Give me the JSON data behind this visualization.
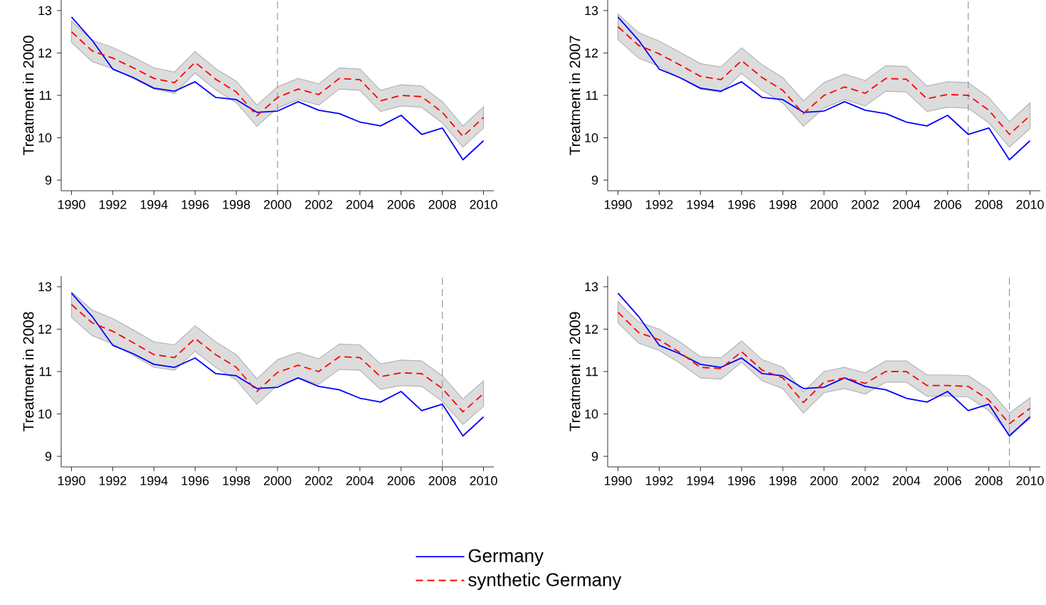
{
  "chart_data": [
    {
      "type": "line",
      "ylabel": "Treatment in 2000",
      "x": [
        1990,
        1991,
        1992,
        1993,
        1994,
        1995,
        1996,
        1997,
        1998,
        1999,
        2000,
        2001,
        2002,
        2003,
        2004,
        2005,
        2006,
        2007,
        2008,
        2009,
        2010
      ],
      "xlim": [
        1989.5,
        2010.5
      ],
      "ylim": [
        8.75,
        13.25
      ],
      "xticks": [
        1990,
        1992,
        1994,
        1996,
        1998,
        2000,
        2002,
        2004,
        2006,
        2008,
        2010
      ],
      "yticks": [
        9,
        10,
        11,
        12,
        13
      ],
      "ref_lines": [
        {
          "axis": "x",
          "value": 2000,
          "color": "#999999",
          "line_style": "dashed"
        }
      ],
      "series": [
        {
          "color": "#0000ff",
          "line_style": "solid",
          "values": [
            12.85,
            12.3,
            11.62,
            11.42,
            11.17,
            11.1,
            11.32,
            10.95,
            10.9,
            10.6,
            10.63,
            10.85,
            10.65,
            10.57,
            10.37,
            10.28,
            10.53,
            10.08,
            10.23,
            9.48,
            9.93
          ]
        },
        {
          "color": "#ff0000",
          "line_style": "dashed",
          "values": [
            12.5,
            12.05,
            11.88,
            11.65,
            11.4,
            11.3,
            11.78,
            11.38,
            11.08,
            10.52,
            10.95,
            11.15,
            11.02,
            11.4,
            11.37,
            10.87,
            11.0,
            10.97,
            10.6,
            10.03,
            10.48
          ],
          "lower": [
            12.25,
            11.8,
            11.63,
            11.4,
            11.15,
            11.05,
            11.53,
            11.13,
            10.83,
            10.27,
            10.7,
            10.9,
            10.77,
            11.15,
            11.12,
            10.62,
            10.75,
            10.72,
            10.35,
            9.78,
            10.23
          ],
          "upper": [
            12.75,
            12.3,
            12.13,
            11.9,
            11.65,
            11.55,
            12.03,
            11.63,
            11.33,
            10.77,
            11.2,
            11.4,
            11.27,
            11.65,
            11.62,
            11.12,
            11.25,
            11.22,
            10.85,
            10.28,
            10.73
          ]
        }
      ]
    },
    {
      "type": "line",
      "ylabel": "Treatment in 2007",
      "x": [
        1990,
        1991,
        1992,
        1993,
        1994,
        1995,
        1996,
        1997,
        1998,
        1999,
        2000,
        2001,
        2002,
        2003,
        2004,
        2005,
        2006,
        2007,
        2008,
        2009,
        2010
      ],
      "xlim": [
        1989.5,
        2010.5
      ],
      "ylim": [
        8.75,
        13.25
      ],
      "xticks": [
        1990,
        1992,
        1994,
        1996,
        1998,
        2000,
        2002,
        2004,
        2006,
        2008,
        2010
      ],
      "yticks": [
        9,
        10,
        11,
        12,
        13
      ],
      "ref_lines": [
        {
          "axis": "x",
          "value": 2007,
          "color": "#999999",
          "line_style": "dashed"
        }
      ],
      "series": [
        {
          "color": "#0000ff",
          "line_style": "solid",
          "values": [
            12.85,
            12.3,
            11.62,
            11.42,
            11.17,
            11.1,
            11.32,
            10.95,
            10.9,
            10.6,
            10.63,
            10.85,
            10.65,
            10.57,
            10.37,
            10.28,
            10.53,
            10.08,
            10.23,
            9.48,
            9.93
          ]
        },
        {
          "color": "#ff0000",
          "line_style": "dashed",
          "values": [
            12.62,
            12.18,
            11.98,
            11.72,
            11.45,
            11.37,
            11.82,
            11.42,
            11.12,
            10.57,
            11.0,
            11.2,
            11.05,
            11.4,
            11.38,
            10.92,
            11.02,
            11.0,
            10.65,
            10.08,
            10.52
          ],
          "lower": [
            12.32,
            11.88,
            11.68,
            11.42,
            11.15,
            11.07,
            11.52,
            11.12,
            10.82,
            10.27,
            10.7,
            10.9,
            10.75,
            11.1,
            11.08,
            10.62,
            10.72,
            10.7,
            10.35,
            9.78,
            10.22
          ],
          "upper": [
            12.92,
            12.48,
            12.28,
            12.02,
            11.75,
            11.67,
            12.12,
            11.72,
            11.42,
            10.87,
            11.3,
            11.5,
            11.35,
            11.7,
            11.68,
            11.22,
            11.32,
            11.3,
            10.95,
            10.38,
            10.82
          ]
        }
      ]
    },
    {
      "type": "line",
      "ylabel": "Treatment in 2008",
      "legend": "bottom",
      "x": [
        1990,
        1991,
        1992,
        1993,
        1994,
        1995,
        1996,
        1997,
        1998,
        1999,
        2000,
        2001,
        2002,
        2003,
        2004,
        2005,
        2006,
        2007,
        2008,
        2009,
        2010
      ],
      "xlim": [
        1989.5,
        2010.5
      ],
      "ylim": [
        8.75,
        13.25
      ],
      "xticks": [
        1990,
        1992,
        1994,
        1996,
        1998,
        2000,
        2002,
        2004,
        2006,
        2008,
        2010
      ],
      "yticks": [
        9,
        10,
        11,
        12,
        13
      ],
      "ref_lines": [
        {
          "axis": "x",
          "value": 2008,
          "color": "#999999",
          "line_style": "dashed"
        }
      ],
      "series": [
        {
          "name": "Germany",
          "color": "#0000ff",
          "line_style": "solid",
          "values": [
            12.85,
            12.3,
            11.62,
            11.42,
            11.17,
            11.1,
            11.32,
            10.95,
            10.9,
            10.6,
            10.63,
            10.85,
            10.65,
            10.57,
            10.37,
            10.28,
            10.53,
            10.08,
            10.23,
            9.48,
            9.93
          ]
        },
        {
          "name": "synthetic Germany",
          "color": "#ff0000",
          "line_style": "dashed",
          "values": [
            12.58,
            12.15,
            11.95,
            11.68,
            11.4,
            11.33,
            11.78,
            11.4,
            11.1,
            10.53,
            10.98,
            11.15,
            11.0,
            11.35,
            11.33,
            10.88,
            10.97,
            10.95,
            10.6,
            10.05,
            10.48
          ],
          "lower": [
            12.28,
            11.85,
            11.65,
            11.38,
            11.1,
            11.03,
            11.48,
            11.1,
            10.8,
            10.23,
            10.68,
            10.85,
            10.7,
            11.05,
            11.03,
            10.58,
            10.67,
            10.65,
            10.3,
            9.75,
            10.18
          ],
          "upper": [
            12.88,
            12.45,
            12.25,
            11.98,
            11.7,
            11.63,
            12.08,
            11.7,
            11.4,
            10.83,
            11.28,
            11.45,
            11.3,
            11.65,
            11.63,
            11.18,
            11.27,
            11.25,
            10.9,
            10.35,
            10.78
          ]
        }
      ]
    },
    {
      "type": "line",
      "ylabel": "Treatment in 2009",
      "x": [
        1990,
        1991,
        1992,
        1993,
        1994,
        1995,
        1996,
        1997,
        1998,
        1999,
        2000,
        2001,
        2002,
        2003,
        2004,
        2005,
        2006,
        2007,
        2008,
        2009,
        2010
      ],
      "xlim": [
        1989.5,
        2010.5
      ],
      "ylim": [
        8.75,
        13.25
      ],
      "xticks": [
        1990,
        1992,
        1994,
        1996,
        1998,
        2000,
        2002,
        2004,
        2006,
        2008,
        2010
      ],
      "yticks": [
        9,
        10,
        11,
        12,
        13
      ],
      "ref_lines": [
        {
          "axis": "x",
          "value": 2009,
          "color": "#999999",
          "line_style": "dashed"
        }
      ],
      "series": [
        {
          "color": "#0000ff",
          "line_style": "solid",
          "values": [
            12.85,
            12.3,
            11.62,
            11.42,
            11.17,
            11.1,
            11.32,
            10.95,
            10.9,
            10.6,
            10.63,
            10.85,
            10.65,
            10.57,
            10.37,
            10.28,
            10.53,
            10.08,
            10.23,
            9.48,
            9.93
          ]
        },
        {
          "color": "#ff0000",
          "line_style": "dashed",
          "values": [
            12.4,
            11.92,
            11.75,
            11.45,
            11.1,
            11.07,
            11.47,
            11.03,
            10.85,
            10.27,
            10.75,
            10.85,
            10.72,
            11.0,
            11.0,
            10.67,
            10.67,
            10.65,
            10.33,
            9.77,
            10.13
          ],
          "lower": [
            12.15,
            11.67,
            11.5,
            11.2,
            10.85,
            10.82,
            11.22,
            10.78,
            10.6,
            10.02,
            10.5,
            10.6,
            10.47,
            10.75,
            10.75,
            10.42,
            10.42,
            10.4,
            10.08,
            9.52,
            9.88
          ],
          "upper": [
            12.65,
            12.17,
            12.0,
            11.7,
            11.35,
            11.32,
            11.72,
            11.28,
            11.1,
            10.52,
            11.0,
            11.1,
            10.97,
            11.25,
            11.25,
            10.92,
            10.92,
            10.9,
            10.58,
            10.02,
            10.38
          ]
        }
      ]
    }
  ]
}
